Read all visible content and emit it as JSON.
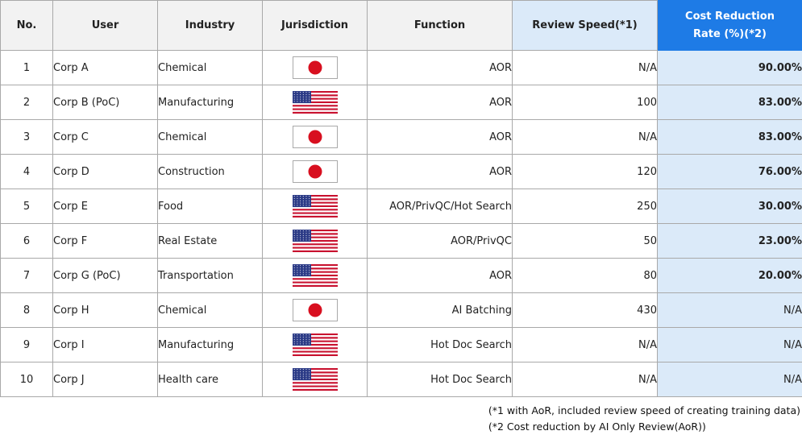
{
  "headers": {
    "no": "No.",
    "user": "User",
    "industry": "Industry",
    "jurisdiction": "Jurisdiction",
    "function": "Function",
    "review_speed": "Review Speed(*1)",
    "cost_reduction_line1": "Cost Reduction",
    "cost_reduction_line2": "Rate (%)(*2)"
  },
  "colors": {
    "header_bg": "#f2f2f2",
    "speed_header_bg": "#dbeaf9",
    "cost_header_bg": "#1e7be6",
    "cost_cell_bg": "#dbeaf9",
    "border": "#a9a9a9"
  },
  "rows": [
    {
      "no": "1",
      "user": "Corp A",
      "industry": "Chemical",
      "flag": "japan-flag",
      "function": "AOR",
      "review_speed": "N/A",
      "cost_reduction": "90.00%"
    },
    {
      "no": "2",
      "user": "Corp B (PoC)",
      "industry": "Manufacturing",
      "flag": "usa-flag",
      "function": "AOR",
      "review_speed": "100",
      "cost_reduction": "83.00%"
    },
    {
      "no": "3",
      "user": "Corp C",
      "industry": "Chemical",
      "flag": "japan-flag",
      "function": "AOR",
      "review_speed": "N/A",
      "cost_reduction": "83.00%"
    },
    {
      "no": "4",
      "user": "Corp D",
      "industry": "Construction",
      "flag": "japan-flag",
      "function": "AOR",
      "review_speed": "120",
      "cost_reduction": "76.00%"
    },
    {
      "no": "5",
      "user": "Corp E",
      "industry": "Food",
      "flag": "usa-flag",
      "function": "AOR/PrivQC/Hot Search",
      "review_speed": "250",
      "cost_reduction": "30.00%"
    },
    {
      "no": "6",
      "user": "Corp F",
      "industry": "Real Estate",
      "flag": "usa-flag",
      "function": "AOR/PrivQC",
      "review_speed": "50",
      "cost_reduction": "23.00%"
    },
    {
      "no": "7",
      "user": "Corp G (PoC)",
      "industry": "Transportation",
      "flag": "usa-flag",
      "function": "AOR",
      "review_speed": "80",
      "cost_reduction": "20.00%"
    },
    {
      "no": "8",
      "user": "Corp H",
      "industry": "Chemical",
      "flag": "japan-flag",
      "function": "AI Batching",
      "review_speed": "430",
      "cost_reduction": "N/A"
    },
    {
      "no": "9",
      "user": "Corp I",
      "industry": "Manufacturing",
      "flag": "usa-flag",
      "function": "Hot Doc Search",
      "review_speed": "N/A",
      "cost_reduction": "N/A"
    },
    {
      "no": "10",
      "user": "Corp J",
      "industry": "Health care",
      "flag": "usa-flag",
      "function": "Hot Doc Search",
      "review_speed": "N/A",
      "cost_reduction": "N/A"
    }
  ],
  "notes": {
    "note1": "(*1 with AoR, included review speed of creating training data)",
    "note2": "(*2 Cost reduction by AI Only Review(AoR))"
  }
}
